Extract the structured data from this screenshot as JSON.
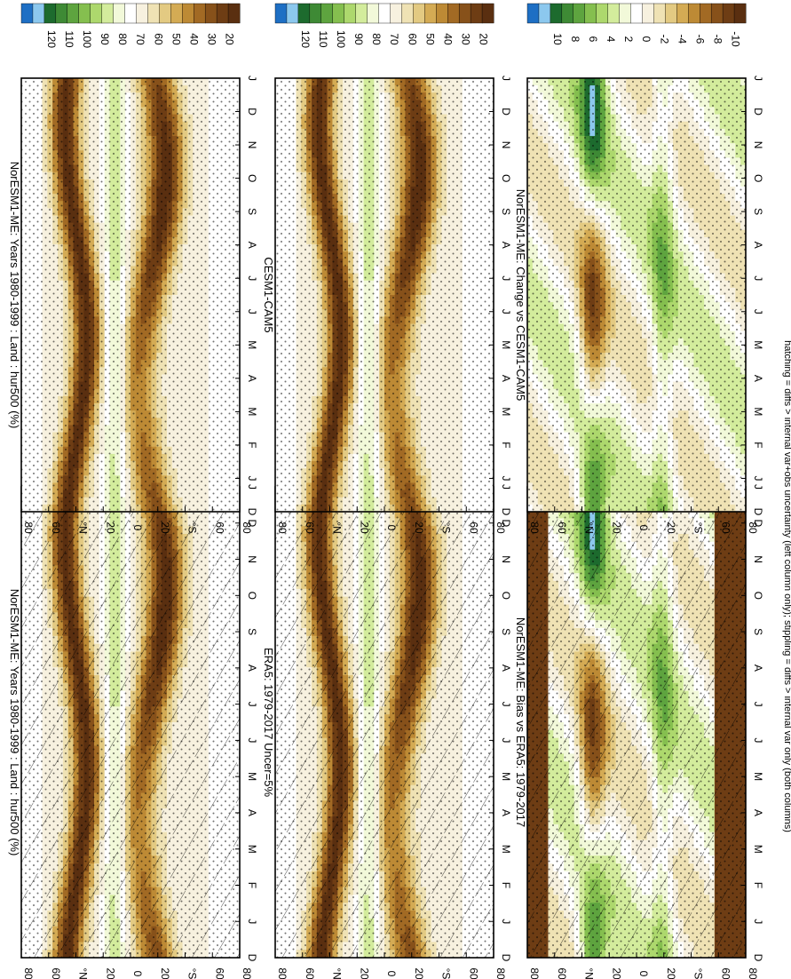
{
  "footnote": "hatching = diffs > internal var+obs uncertainty (left column only); stippling = diffs > internal var only (both columns)",
  "month_labels": [
    "D",
    "J",
    "F",
    "M",
    "A",
    "M",
    "J",
    "J",
    "A",
    "S",
    "O",
    "N",
    "D",
    "J"
  ],
  "lat_labels": [
    "80",
    "60",
    "°N",
    "20",
    "0",
    "20",
    "°S",
    "60",
    "80"
  ],
  "colorbars": {
    "absolute": {
      "labels": [
        "120",
        "110",
        "100",
        "90",
        "80",
        "70",
        "60",
        "50",
        "40",
        "30",
        "20"
      ],
      "colors": [
        "#1e6fc4",
        "#8cc8ee",
        "#1d6b2e",
        "#3e8a35",
        "#5ea43f",
        "#85bf4f",
        "#add86d",
        "#d3ec9c",
        "#f2f9d9",
        "#ffffff",
        "#f7f1df",
        "#efe2b4",
        "#e3ca82",
        "#d4ab54",
        "#bd8a35",
        "#a26a24",
        "#87511a",
        "#6e3d14",
        "#5a2f10"
      ]
    },
    "difference": {
      "labels": [
        "10",
        "8",
        "6",
        "4",
        "2",
        "0",
        "-2",
        "-4",
        "-6",
        "-8",
        "-10"
      ],
      "colors": [
        "#1e6fc4",
        "#8cc8ee",
        "#1d6b2e",
        "#3e8a35",
        "#5ea43f",
        "#85bf4f",
        "#add86d",
        "#d3ec9c",
        "#f2f9d9",
        "#ffffff",
        "#f7f1df",
        "#efe2b4",
        "#e3ca82",
        "#d4ab54",
        "#bd8a35",
        "#a26a24",
        "#87511a",
        "#6e3d14",
        "#5a2f10"
      ]
    }
  },
  "panels": [
    {
      "title": "NorESM1-ME: Years 1980-1999 : Land : hur500 (%)",
      "scale": "absolute",
      "hatch": true,
      "stipple": true
    },
    {
      "title": "NorESM1-ME: Years 1980-1999 : Land : hur500 (%)",
      "scale": "absolute",
      "hatch": false,
      "stipple": true
    },
    {
      "title": "ERA5: 1979-2017 Uncer=5%",
      "scale": "absolute",
      "hatch": true,
      "stipple": true
    },
    {
      "title": "CESM1-CAM5",
      "scale": "absolute",
      "hatch": false,
      "stipple": true
    },
    {
      "title": "NorESM1-ME: Bias vs ERA5: 1979-2017",
      "scale": "difference",
      "hatch": true,
      "stipple": true
    },
    {
      "title": "NorESM1-ME: Change vs CESM1-CAM5",
      "scale": "difference",
      "hatch": false,
      "stipple": true
    }
  ],
  "chart_data": {
    "type": "heatmap",
    "x_axis": "month",
    "y_axis": "latitude",
    "variable": "hur500",
    "unit": "%"
  }
}
